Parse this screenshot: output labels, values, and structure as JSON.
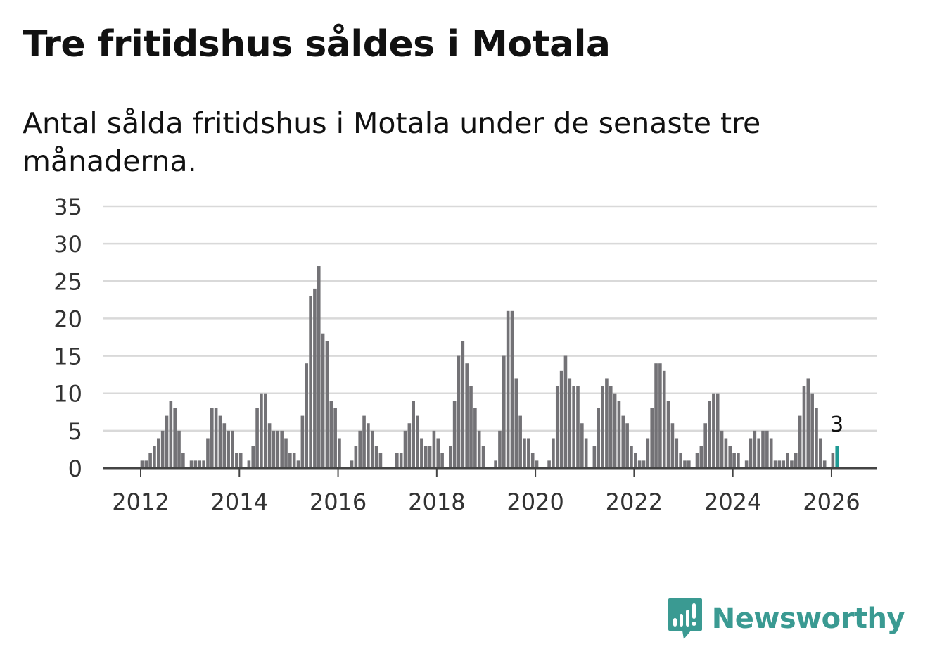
{
  "title": "Tre fritidshus såldes i Motala",
  "subtitle": "Antal sålda fritidshus i Motala under de senaste tre månaderna.",
  "brand": {
    "name": "Newsworthy"
  },
  "colors": {
    "bar": "#737276",
    "highlight": "#1f9a94",
    "grid": "#d9d9d9",
    "axis": "#444444",
    "brand": "#3a9a92"
  },
  "chart_data": {
    "type": "bar",
    "title": "Tre fritidshus såldes i Motala",
    "subtitle": "Antal sålda fritidshus i Motala under de senaste tre månaderna.",
    "xlabel": "",
    "ylabel": "",
    "ylim": [
      0,
      35
    ],
    "yticks": [
      0,
      5,
      10,
      15,
      20,
      25,
      30,
      35
    ],
    "xticks": [
      {
        "label": "2012",
        "index": 12
      },
      {
        "label": "2014",
        "index": 36
      },
      {
        "label": "2016",
        "index": 60
      },
      {
        "label": "2018",
        "index": 84
      },
      {
        "label": "2020",
        "index": 108
      },
      {
        "label": "2022",
        "index": 132
      },
      {
        "label": "2024",
        "index": 156
      },
      {
        "label": "2026",
        "index": 180
      }
    ],
    "start": "2011-01",
    "interval": "month",
    "grid": true,
    "values": [
      0,
      0,
      0,
      0,
      0,
      0,
      0,
      0,
      0,
      0,
      0,
      0,
      1,
      1,
      2,
      3,
      4,
      5,
      7,
      9,
      8,
      5,
      2,
      0,
      1,
      1,
      1,
      1,
      4,
      8,
      8,
      7,
      6,
      5,
      5,
      2,
      2,
      0,
      1,
      3,
      8,
      10,
      10,
      6,
      5,
      5,
      5,
      4,
      2,
      2,
      1,
      7,
      14,
      23,
      24,
      27,
      18,
      17,
      9,
      8,
      4,
      0,
      0,
      1,
      3,
      5,
      7,
      6,
      5,
      3,
      2,
      0,
      0,
      0,
      2,
      2,
      5,
      6,
      9,
      7,
      4,
      3,
      3,
      5,
      4,
      2,
      0,
      3,
      9,
      15,
      17,
      14,
      11,
      8,
      5,
      3,
      0,
      0,
      1,
      5,
      15,
      21,
      21,
      12,
      7,
      4,
      4,
      2,
      1,
      0,
      0,
      1,
      4,
      11,
      13,
      15,
      12,
      11,
      11,
      6,
      4,
      0,
      3,
      8,
      11,
      12,
      11,
      10,
      9,
      7,
      6,
      3,
      2,
      1,
      1,
      4,
      8,
      14,
      14,
      13,
      9,
      6,
      4,
      2,
      1,
      1,
      0,
      2,
      3,
      6,
      9,
      10,
      10,
      5,
      4,
      3,
      2,
      2,
      0,
      1,
      4,
      5,
      4,
      5,
      5,
      4,
      1,
      1,
      1,
      2,
      1,
      2,
      7,
      11,
      12,
      10,
      8,
      4,
      1,
      0,
      2,
      3
    ],
    "highlight_index": 181,
    "annotation": {
      "index": 181,
      "text": "3"
    }
  }
}
